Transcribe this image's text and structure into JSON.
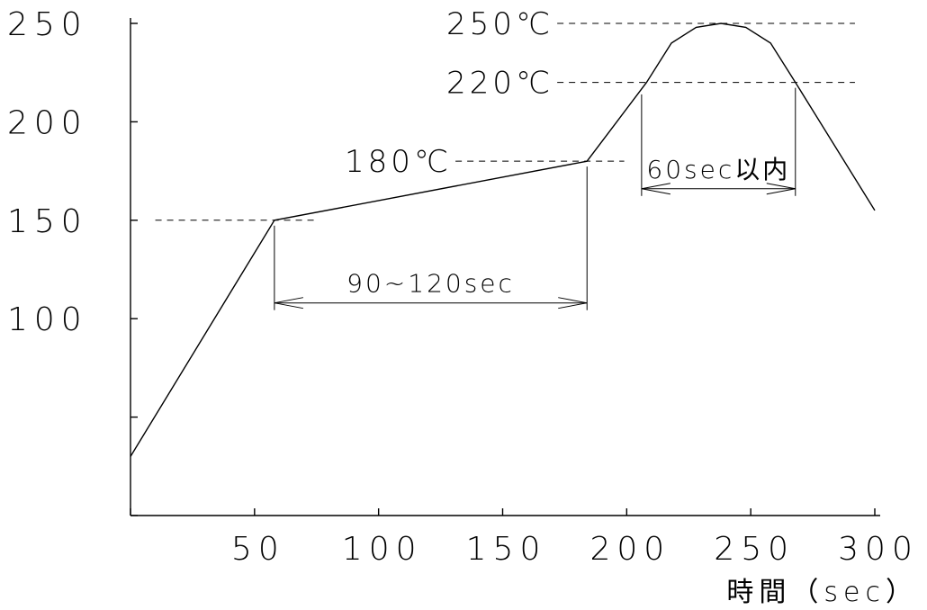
{
  "chart_data": {
    "type": "line",
    "title": "",
    "xlabel": "時間（sec）",
    "ylabel": "",
    "xlim": [
      0,
      300
    ],
    "ylim": [
      0,
      250
    ],
    "x_ticks": [
      0,
      50,
      100,
      150,
      200,
      250,
      300
    ],
    "x_tick_labels": [
      "",
      "50",
      "100",
      "150",
      "200",
      "250",
      "300"
    ],
    "y_ticks": [
      0,
      50,
      100,
      150,
      200,
      250
    ],
    "y_tick_labels": [
      "",
      "",
      "100",
      "150",
      "200",
      "250"
    ],
    "grid": false,
    "series": [
      {
        "x": [
          0,
          58,
          184,
          196,
          208,
          218,
          228,
          238,
          248,
          258,
          268,
          300
        ],
        "y": [
          30,
          150,
          180,
          200,
          220,
          240,
          248,
          250,
          248,
          240,
          220,
          155
        ]
      }
    ],
    "annotations": [
      {
        "label": "250℃",
        "y": 250,
        "x_start": 172,
        "x_end": 292
      },
      {
        "label": "220℃",
        "y": 220,
        "x_start": 172,
        "x_end": 292
      },
      {
        "label": "180℃",
        "y": 180,
        "x_start": 131,
        "x_end": 199
      },
      {
        "label": "",
        "y": 150,
        "x_start": 10,
        "x_end": 76
      }
    ],
    "spans": [
      {
        "label": "90~120sec",
        "x_start": 58,
        "x_end": 184,
        "y": 108
      },
      {
        "label": "60sec以内",
        "x_start": 206,
        "x_end": 268,
        "y": 166
      }
    ]
  }
}
